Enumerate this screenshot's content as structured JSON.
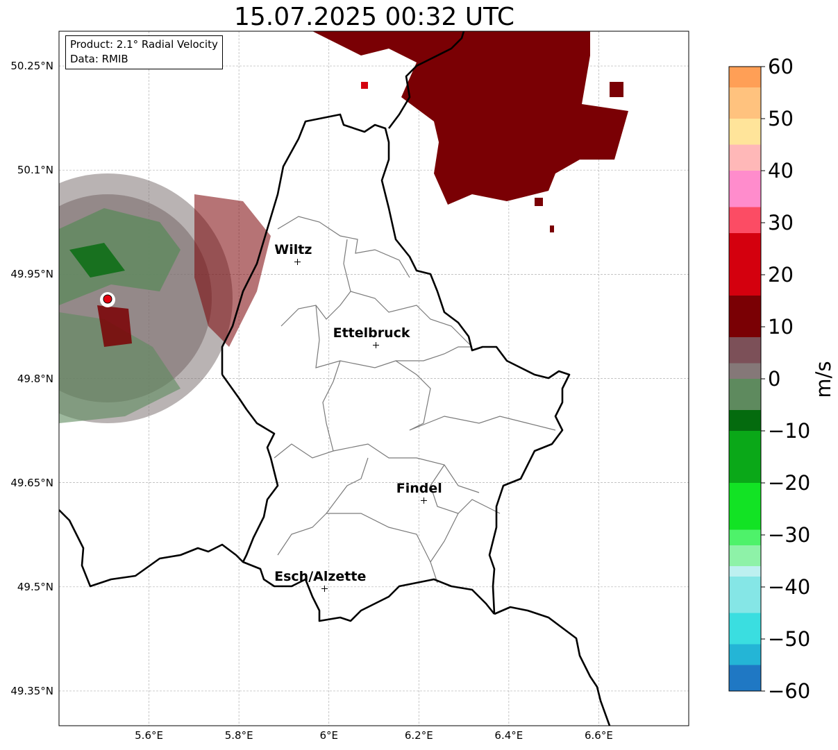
{
  "title": "15.07.2025 00:32 UTC",
  "info": {
    "product": "Product: 2.1° Radial Velocity",
    "data": "Data: RMIB"
  },
  "map": {
    "lon_range": [
      5.4,
      6.8
    ],
    "lat_range": [
      49.3,
      50.3
    ],
    "lat_ticks": [
      "50.25°N",
      "50.1°N",
      "49.95°N",
      "49.8°N",
      "49.65°N",
      "49.5°N",
      "49.35°N"
    ],
    "lon_ticks": [
      "5.6°E",
      "5.8°E",
      "6°E",
      "6.2°E",
      "6.4°E",
      "6.6°E"
    ],
    "gridlines": true,
    "cities": [
      {
        "name": "Wiltz",
        "lon": 5.93,
        "lat": 49.968
      },
      {
        "name": "Ettelbruck",
        "lon": 6.104,
        "lat": 49.848
      },
      {
        "name": "Findel",
        "lon": 6.21,
        "lat": 49.625
      },
      {
        "name": "Esch/Alzette",
        "lon": 5.99,
        "lat": 49.498
      }
    ],
    "radar_site": {
      "lon": 5.505,
      "lat": 49.914,
      "color": "#e3000f"
    },
    "colors": {
      "national_border": "#000000",
      "district_border": "#7a7a7a",
      "gridline": "#b0b0b0"
    }
  },
  "colorbar": {
    "label": "m/s",
    "min": -60,
    "max": 60,
    "ticks": [
      "60",
      "50",
      "40",
      "30",
      "20",
      "10",
      "0",
      "−10",
      "−20",
      "−30",
      "−40",
      "−50",
      "−60"
    ],
    "bands": [
      {
        "from": -60,
        "to": -55,
        "color": "#1f78c4"
      },
      {
        "from": -55,
        "to": -51,
        "color": "#24b5d6"
      },
      {
        "from": -51,
        "to": -45,
        "color": "#3adee0"
      },
      {
        "from": -45,
        "to": -38,
        "color": "#85e6e6"
      },
      {
        "from": -38,
        "to": -36,
        "color": "#bdf0f0"
      },
      {
        "from": -36,
        "to": -32,
        "color": "#8ef2a8"
      },
      {
        "from": -32,
        "to": -29,
        "color": "#4ef26a"
      },
      {
        "from": -29,
        "to": -20,
        "color": "#12e324"
      },
      {
        "from": -20,
        "to": -10,
        "color": "#0aa818"
      },
      {
        "from": -10,
        "to": -6,
        "color": "#046b0e"
      },
      {
        "from": -6,
        "to": 0,
        "color": "#5e8a5e"
      },
      {
        "from": 0,
        "to": 3,
        "color": "#857878"
      },
      {
        "from": 3,
        "to": 8,
        "color": "#7c5058"
      },
      {
        "from": 8,
        "to": 16,
        "color": "#7a0004"
      },
      {
        "from": 16,
        "to": 28,
        "color": "#d4000e"
      },
      {
        "from": 28,
        "to": 33,
        "color": "#fc4c64"
      },
      {
        "from": 33,
        "to": 40,
        "color": "#ff8ccc"
      },
      {
        "from": 40,
        "to": 45,
        "color": "#ffb8b8"
      },
      {
        "from": 45,
        "to": 50,
        "color": "#ffe49a"
      },
      {
        "from": 50,
        "to": 56,
        "color": "#ffc27e"
      },
      {
        "from": 56,
        "to": 60,
        "color": "#ff9f56"
      }
    ]
  }
}
